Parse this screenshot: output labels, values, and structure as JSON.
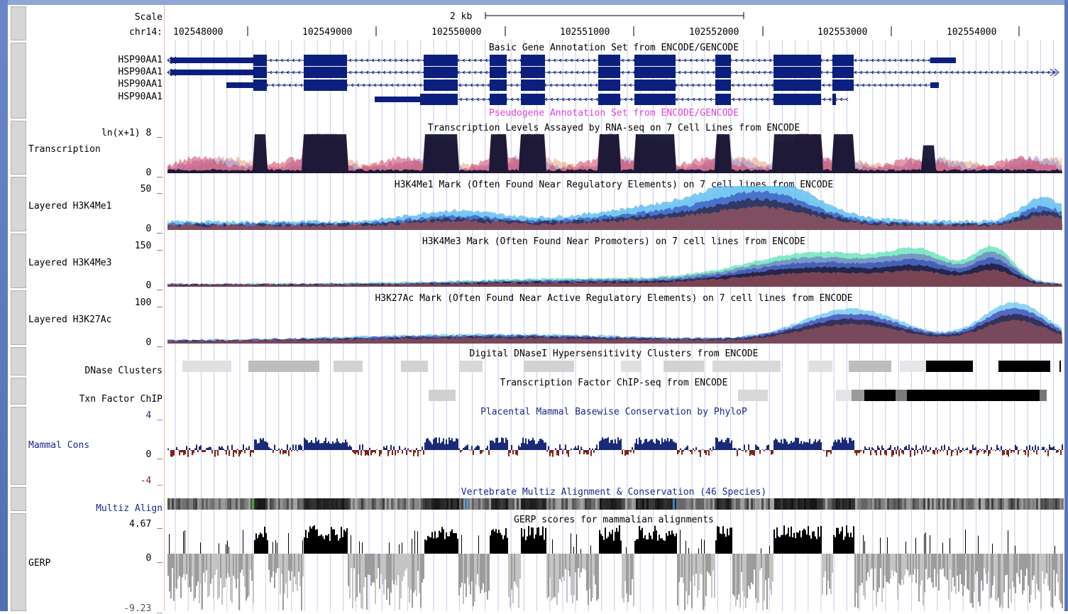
{
  "colors": {
    "gene": "#0c1f7e",
    "pseudogene": "#e040e0",
    "navy_text": "#1a2a8a",
    "cons_pos": "#1b2a78",
    "cons_neg": "#7a2418",
    "grid": "#c9cbe8",
    "rna_dark": "#141432"
  },
  "scale": {
    "label": "Scale",
    "size_label": "2 kb"
  },
  "position": {
    "chrom_label": "chr14:",
    "coords": [
      "102548000",
      "102549000",
      "102550000",
      "102551000",
      "102552000",
      "102553000",
      "102554000"
    ]
  },
  "tracks": {
    "gencode": {
      "title": "Basic Gene Annotation Set from ENCODE/GENCODE",
      "genes": [
        "HSP90AA1",
        "HSP90AA1",
        "HSP90AA1",
        "HSP90AA1"
      ]
    },
    "pseudogene": {
      "title": "Pseudogene Annotation Set from ENCODE/GENCODE"
    },
    "transcription": {
      "title": "Transcription Levels Assayed by RNA-seq on 7 Cell Lines from ENCODE",
      "label": "Transcription",
      "max_label": "ln(x+1) 8 _",
      "min_label": "0 _"
    },
    "h3k4me1": {
      "title": "H3K4Me1 Mark (Often Found Near Regulatory Elements) on 7 cell lines from ENCODE",
      "label": "Layered H3K4Me1",
      "max_label": "50 _",
      "min_label": "0 _"
    },
    "h3k4me3": {
      "title": "H3K4Me3 Mark (Often Found Near Promoters) on 7 cell lines from ENCODE",
      "label": "Layered H3K4Me3",
      "max_label": "150 _",
      "min_label": "0 _"
    },
    "h3k27ac": {
      "title": "H3K27Ac Mark (Often Found Near Active Regulatory Elements) on 7 cell lines from ENCODE",
      "label": "Layered H3K27Ac",
      "max_label": "100 _",
      "min_label": "0 _"
    },
    "dnase": {
      "title": "Digital DNaseI Hypersensitivity Clusters from ENCODE",
      "label": "DNase Clusters"
    },
    "txn": {
      "title": "Transcription Factor ChIP-seq from ENCODE",
      "label": "Txn Factor ChIP"
    },
    "cons": {
      "title": "Placental Mammal Basewise Conservation by PhyloP",
      "label": "Mammal Cons",
      "max_label": "4 _",
      "zero_label": "0 _",
      "min_label": "-4 _"
    },
    "multiz": {
      "title": "Vertebrate Multiz Alignment & Conservation (46 Species)",
      "label": "Multiz Align"
    },
    "gerp": {
      "title": "GERP scores for mammalian alignments",
      "label": "GERP",
      "max_label": "4.67 _",
      "zero_label": "0 _",
      "min_label": "-9.23 _"
    }
  }
}
